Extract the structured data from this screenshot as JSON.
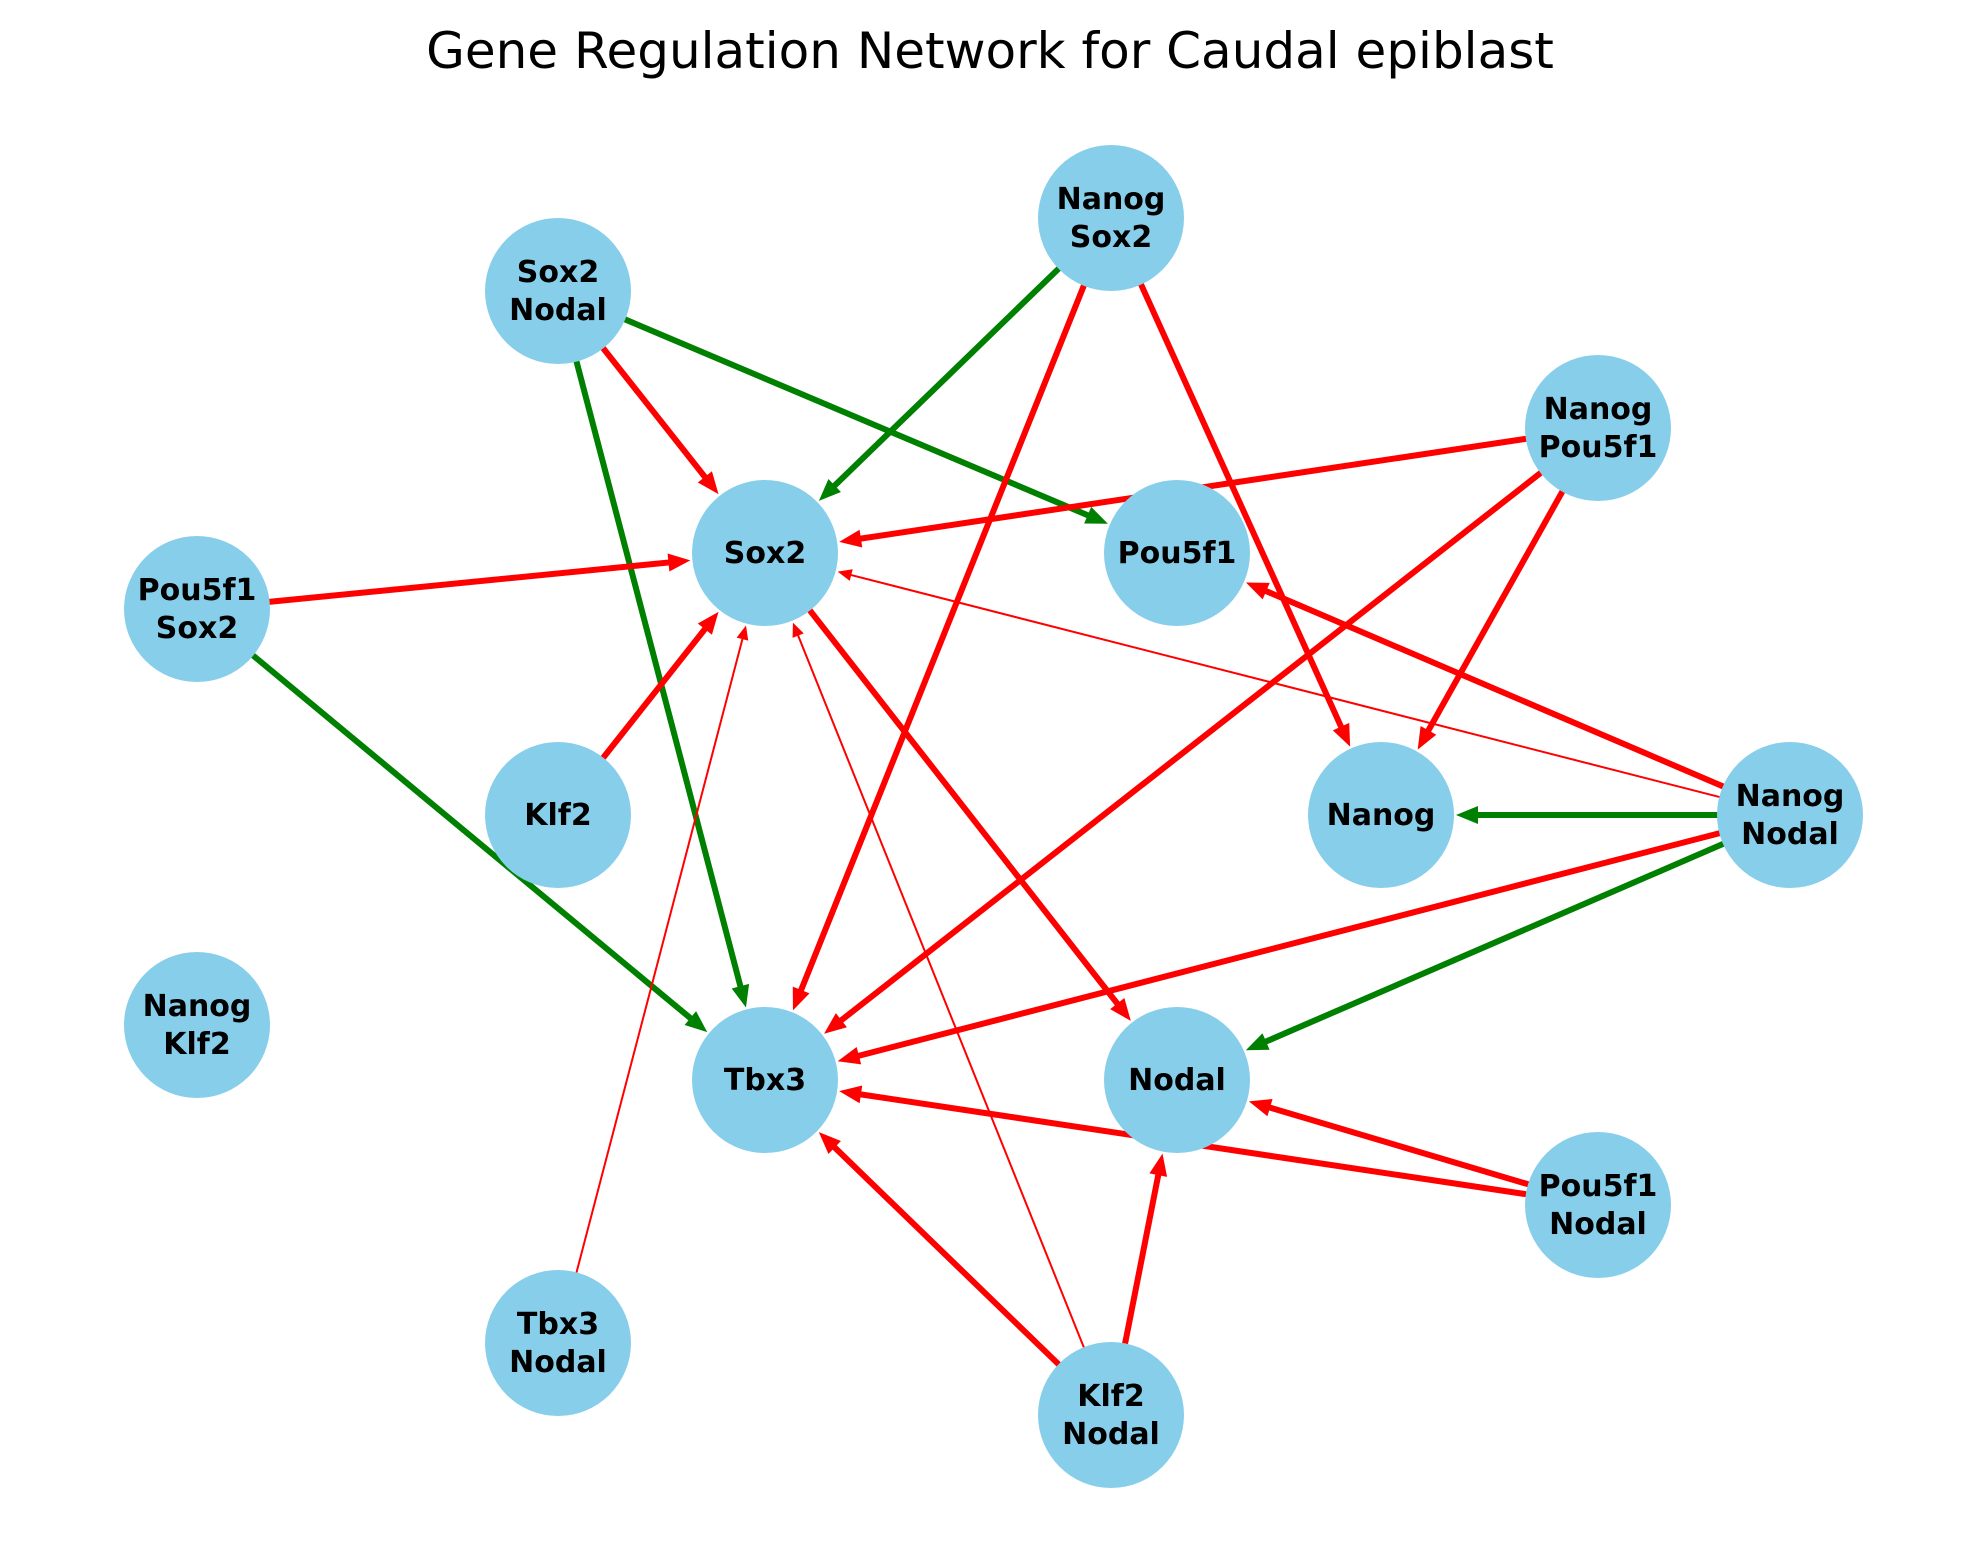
{
  "title": "Gene Regulation Network for Caudal epiblast",
  "colors": {
    "node_fill": "#87CEEB",
    "activation": "#008000",
    "inhibition": "#FF0000",
    "background": "#FFFFFF"
  },
  "legend_keys": {
    "green": "activation",
    "red": "inhibition"
  },
  "nodes": [
    {
      "id": "Sox2",
      "lines": [
        "Sox2"
      ]
    },
    {
      "id": "Pou5f1",
      "lines": [
        "Pou5f1"
      ]
    },
    {
      "id": "Nanog",
      "lines": [
        "Nanog"
      ]
    },
    {
      "id": "Klf2",
      "lines": [
        "Klf2"
      ]
    },
    {
      "id": "Tbx3",
      "lines": [
        "Tbx3"
      ]
    },
    {
      "id": "Nodal",
      "lines": [
        "Nodal"
      ]
    },
    {
      "id": "Sox2Nodal",
      "lines": [
        "Sox2",
        "Nodal"
      ]
    },
    {
      "id": "NanogSox2",
      "lines": [
        "Nanog",
        "Sox2"
      ]
    },
    {
      "id": "NanogPou5f1",
      "lines": [
        "Nanog",
        "Pou5f1"
      ]
    },
    {
      "id": "Pou5f1Sox2",
      "lines": [
        "Pou5f1",
        "Sox2"
      ]
    },
    {
      "id": "NanogNodal",
      "lines": [
        "Nanog",
        "Nodal"
      ]
    },
    {
      "id": "NanogKlf2",
      "lines": [
        "Nanog",
        "Klf2"
      ]
    },
    {
      "id": "Pou5f1Nodal",
      "lines": [
        "Pou5f1",
        "Nodal"
      ]
    },
    {
      "id": "Tbx3Nodal",
      "lines": [
        "Tbx3",
        "Nodal"
      ]
    },
    {
      "id": "Klf2Nodal",
      "lines": [
        "Klf2",
        "Nodal"
      ]
    }
  ],
  "edges": [
    {
      "from": "Sox2Nodal",
      "to": "Sox2",
      "type": "inhibition",
      "weight": "strong"
    },
    {
      "from": "Sox2Nodal",
      "to": "Pou5f1",
      "type": "activation",
      "weight": "strong"
    },
    {
      "from": "Sox2Nodal",
      "to": "Tbx3",
      "type": "activation",
      "weight": "strong"
    },
    {
      "from": "NanogSox2",
      "to": "Sox2",
      "type": "activation",
      "weight": "strong"
    },
    {
      "from": "NanogSox2",
      "to": "Tbx3",
      "type": "inhibition",
      "weight": "strong"
    },
    {
      "from": "NanogSox2",
      "to": "Nanog",
      "type": "inhibition",
      "weight": "strong"
    },
    {
      "from": "NanogPou5f1",
      "to": "Sox2",
      "type": "inhibition",
      "weight": "strong"
    },
    {
      "from": "NanogPou5f1",
      "to": "Tbx3",
      "type": "inhibition",
      "weight": "strong"
    },
    {
      "from": "NanogPou5f1",
      "to": "Nanog",
      "type": "inhibition",
      "weight": "strong"
    },
    {
      "from": "Pou5f1Sox2",
      "to": "Sox2",
      "type": "inhibition",
      "weight": "strong"
    },
    {
      "from": "Pou5f1Sox2",
      "to": "Tbx3",
      "type": "activation",
      "weight": "strong"
    },
    {
      "from": "Klf2",
      "to": "Sox2",
      "type": "inhibition",
      "weight": "strong"
    },
    {
      "from": "Sox2",
      "to": "Nodal",
      "type": "inhibition",
      "weight": "strong"
    },
    {
      "from": "NanogNodal",
      "to": "Nanog",
      "type": "activation",
      "weight": "strong"
    },
    {
      "from": "NanogNodal",
      "to": "Pou5f1",
      "type": "inhibition",
      "weight": "strong"
    },
    {
      "from": "NanogNodal",
      "to": "Sox2",
      "type": "inhibition",
      "weight": "weak"
    },
    {
      "from": "NanogNodal",
      "to": "Tbx3",
      "type": "inhibition",
      "weight": "strong"
    },
    {
      "from": "NanogNodal",
      "to": "Nodal",
      "type": "activation",
      "weight": "strong"
    },
    {
      "from": "Pou5f1Nodal",
      "to": "Nodal",
      "type": "inhibition",
      "weight": "strong"
    },
    {
      "from": "Pou5f1Nodal",
      "to": "Tbx3",
      "type": "inhibition",
      "weight": "strong"
    },
    {
      "from": "Klf2Nodal",
      "to": "Tbx3",
      "type": "inhibition",
      "weight": "strong"
    },
    {
      "from": "Klf2Nodal",
      "to": "Nodal",
      "type": "inhibition",
      "weight": "strong"
    },
    {
      "from": "Klf2Nodal",
      "to": "Sox2",
      "type": "inhibition",
      "weight": "weak"
    },
    {
      "from": "Tbx3Nodal",
      "to": "Sox2",
      "type": "inhibition",
      "weight": "weak"
    }
  ]
}
